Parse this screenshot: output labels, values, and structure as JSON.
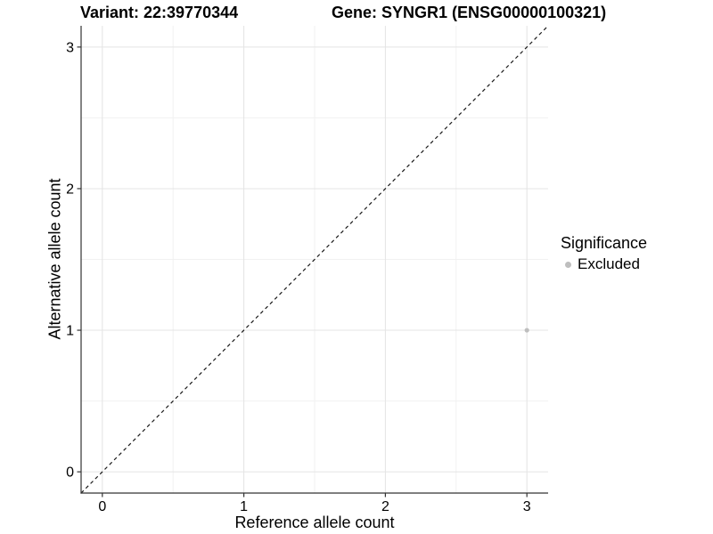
{
  "header": {
    "variant_title": "Variant: 22:39770344",
    "gene_title": "Gene: SYNGR1 (ENSG00000100321)"
  },
  "chart_data": {
    "type": "scatter",
    "xlabel": "Reference allele count",
    "ylabel": "Alternative allele count",
    "xlim": [
      -0.15,
      3.15
    ],
    "ylim": [
      -0.15,
      3.15
    ],
    "x_ticks": [
      0,
      1,
      2,
      3
    ],
    "y_ticks": [
      0,
      1,
      2,
      3
    ],
    "x_minor_ticks": [
      0.5,
      1.5,
      2.5
    ],
    "y_minor_ticks": [
      0.5,
      1.5,
      2.5
    ],
    "grid": "on",
    "identity_line": {
      "equation": "y = x",
      "style": "dashed",
      "color": "#1a1a1a"
    },
    "series": [
      {
        "name": "Excluded",
        "color": "#bebebe",
        "points": [
          [
            3,
            1
          ]
        ]
      }
    ],
    "legend": {
      "title": "Significance",
      "position": "right",
      "items": [
        {
          "label": "Excluded",
          "color": "#bebebe"
        }
      ]
    }
  },
  "style": {
    "background": "#ffffff",
    "grid_major_color": "#e4e4e4",
    "grid_minor_color": "#f1f1f1",
    "axis_line_color": "#333333",
    "tick_label_color": "#000000",
    "tick_label_size": 16,
    "point_radius": 2.6
  }
}
